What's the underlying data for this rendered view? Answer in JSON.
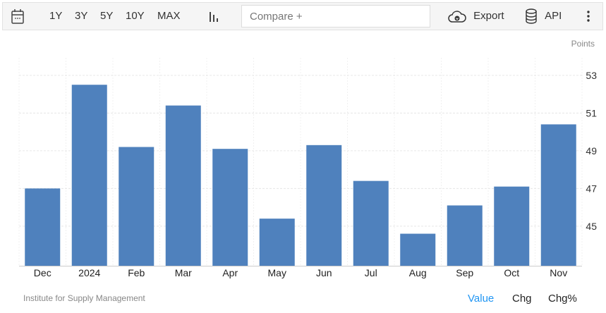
{
  "toolbar": {
    "calendar_icon": "calendar-icon",
    "ranges": [
      "1Y",
      "3Y",
      "5Y",
      "10Y",
      "MAX"
    ],
    "chart_type_icon": "bar-chart-icon",
    "compare_placeholder": "Compare +",
    "export_label": "Export",
    "api_label": "API",
    "more_icon": "vertical-dots-icon"
  },
  "footer": {
    "source": "Institute for Supply Management",
    "modes": [
      "Value",
      "Chg",
      "Chg%"
    ],
    "active_mode": "Value",
    "active_color": "#2196f3"
  },
  "chart_data": {
    "type": "bar",
    "unit_label": "Points",
    "categories": [
      "Dec",
      "2024",
      "Feb",
      "Mar",
      "Apr",
      "May",
      "Jun",
      "Jul",
      "Aug",
      "Sep",
      "Oct",
      "Nov"
    ],
    "values": [
      47.0,
      52.5,
      49.2,
      51.4,
      49.1,
      45.4,
      49.3,
      47.4,
      44.6,
      46.1,
      47.1,
      50.4
    ],
    "yticks": [
      45,
      47,
      49,
      51,
      53
    ],
    "ylim": [
      42.9,
      53.93
    ],
    "y_axis_side": "right",
    "grid": true,
    "bar_color": "#4f81bd"
  }
}
